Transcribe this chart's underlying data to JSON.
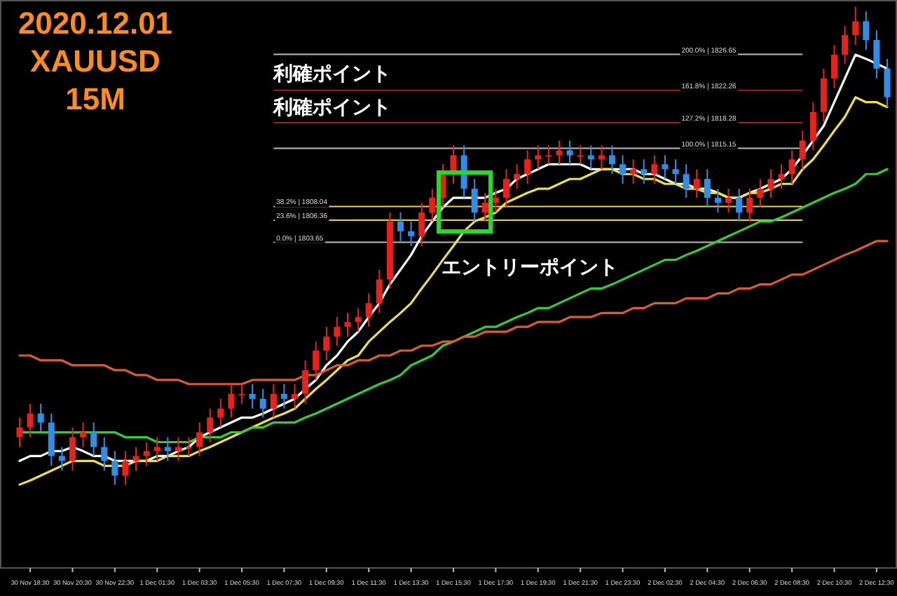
{
  "chart_data": {
    "type": "candlestick",
    "title": "2020.12.01",
    "subtitle": "XAUUSD",
    "categories": [
      null,
      "30 Nov 18:30",
      null,
      null,
      null,
      "30 Nov 20:30",
      null,
      null,
      null,
      "30 Nov 22:30",
      null,
      null,
      null,
      "1 Dec 01:30",
      null,
      null,
      null,
      "1 Dec 03:30",
      null,
      null,
      null,
      "1 Dec 05:30",
      null,
      null,
      null,
      "1 Dec 07:30",
      null,
      null,
      null,
      "1 Dec 09:30",
      null,
      null,
      null,
      "1 Dec 11:30",
      null,
      null,
      null,
      "1 Dec 13:30",
      null,
      null,
      null,
      "1 Dec 15:30",
      null,
      null,
      null,
      "1 Dec 17:30",
      null,
      null,
      null,
      "1 Dec 19:30",
      null,
      null,
      null,
      "1 Dec 21:30",
      null,
      null,
      null,
      "1 Dec 23:30",
      null,
      null,
      null,
      "2 Dec 02:30",
      null,
      null,
      null,
      "2 Dec 04:30",
      null,
      null,
      null,
      "2 Dec 06:30",
      null,
      null,
      null,
      "2 Dec 08:30",
      null,
      null,
      null,
      "2 Dec 10:30",
      null,
      null,
      null,
      "2 Dec 12:30",
      null
    ],
    "ylim": [
      1763.8,
      1833.3
    ],
    "tick_labels": "x",
    "ohlc": [
      [
        1779.8,
        1782.2,
        1778.6,
        1781.0
      ],
      [
        1781.0,
        1783.9,
        1779.8,
        1782.7
      ],
      [
        1782.7,
        1783.9,
        1780.4,
        1781.6
      ],
      [
        1781.6,
        1782.7,
        1776.3,
        1777.5
      ],
      [
        1777.5,
        1778.6,
        1775.7,
        1776.9
      ],
      [
        1776.9,
        1781.0,
        1775.7,
        1779.8
      ],
      [
        1779.8,
        1781.6,
        1778.6,
        1780.4
      ],
      [
        1780.4,
        1781.6,
        1777.5,
        1778.6
      ],
      [
        1778.6,
        1779.8,
        1775.7,
        1776.9
      ],
      [
        1776.9,
        1778.1,
        1774.0,
        1775.1
      ],
      [
        1775.1,
        1778.1,
        1774.0,
        1776.9
      ],
      [
        1776.9,
        1778.6,
        1775.7,
        1777.5
      ],
      [
        1777.5,
        1779.2,
        1776.3,
        1778.1
      ],
      [
        1778.1,
        1779.8,
        1776.9,
        1778.6
      ],
      [
        1778.6,
        1779.8,
        1776.9,
        1778.1
      ],
      [
        1778.1,
        1779.8,
        1776.9,
        1778.6
      ],
      [
        1778.6,
        1779.8,
        1777.5,
        1778.6
      ],
      [
        1778.6,
        1781.6,
        1777.5,
        1780.4
      ],
      [
        1780.4,
        1783.3,
        1779.2,
        1782.2
      ],
      [
        1782.2,
        1784.5,
        1781.0,
        1783.3
      ],
      [
        1783.3,
        1786.3,
        1782.2,
        1785.1
      ],
      [
        1785.1,
        1786.3,
        1783.9,
        1785.1
      ],
      [
        1785.1,
        1786.3,
        1783.3,
        1784.5
      ],
      [
        1784.5,
        1785.7,
        1782.2,
        1783.3
      ],
      [
        1783.3,
        1786.3,
        1782.2,
        1785.1
      ],
      [
        1785.1,
        1786.3,
        1783.3,
        1784.5
      ],
      [
        1784.5,
        1786.3,
        1783.3,
        1785.1
      ],
      [
        1785.1,
        1789.2,
        1783.9,
        1788.0
      ],
      [
        1788.0,
        1791.5,
        1786.8,
        1790.4
      ],
      [
        1790.4,
        1793.3,
        1789.2,
        1792.1
      ],
      [
        1792.1,
        1794.5,
        1791.0,
        1793.3
      ],
      [
        1793.3,
        1795.0,
        1792.1,
        1793.9
      ],
      [
        1793.9,
        1795.6,
        1792.7,
        1794.5
      ],
      [
        1794.5,
        1797.4,
        1793.3,
        1796.2
      ],
      [
        1796.2,
        1800.3,
        1795.0,
        1799.1
      ],
      [
        1799.1,
        1807.3,
        1798.0,
        1806.2
      ],
      [
        1806.2,
        1807.3,
        1803.8,
        1805.0
      ],
      [
        1805.0,
        1806.2,
        1803.2,
        1804.4
      ],
      [
        1804.4,
        1808.5,
        1803.2,
        1807.3
      ],
      [
        1807.3,
        1810.2,
        1806.2,
        1809.1
      ],
      [
        1809.1,
        1813.2,
        1807.9,
        1812.0
      ],
      [
        1812.0,
        1815.5,
        1810.8,
        1814.3
      ],
      [
        1814.3,
        1815.5,
        1809.1,
        1810.2
      ],
      [
        1810.2,
        1811.4,
        1806.2,
        1807.3
      ],
      [
        1807.3,
        1809.7,
        1806.2,
        1808.5
      ],
      [
        1808.5,
        1810.2,
        1807.3,
        1809.1
      ],
      [
        1809.1,
        1812.6,
        1807.9,
        1811.4
      ],
      [
        1811.4,
        1813.2,
        1810.2,
        1812.0
      ],
      [
        1812.0,
        1814.9,
        1810.8,
        1813.8
      ],
      [
        1813.8,
        1815.5,
        1812.6,
        1814.3
      ],
      [
        1814.3,
        1815.5,
        1813.2,
        1814.3
      ],
      [
        1814.3,
        1816.1,
        1813.2,
        1814.9
      ],
      [
        1814.9,
        1816.1,
        1813.2,
        1814.3
      ],
      [
        1814.3,
        1815.5,
        1813.2,
        1814.3
      ],
      [
        1814.3,
        1815.5,
        1812.6,
        1813.8
      ],
      [
        1813.8,
        1815.5,
        1812.6,
        1814.3
      ],
      [
        1814.3,
        1815.5,
        1812.0,
        1813.2
      ],
      [
        1813.2,
        1814.3,
        1810.8,
        1812.0
      ],
      [
        1812.0,
        1813.8,
        1810.8,
        1812.6
      ],
      [
        1812.6,
        1813.8,
        1810.8,
        1812.0
      ],
      [
        1812.0,
        1814.3,
        1810.8,
        1813.2
      ],
      [
        1813.2,
        1814.3,
        1811.4,
        1812.6
      ],
      [
        1812.6,
        1813.8,
        1810.8,
        1812.0
      ],
      [
        1812.0,
        1813.2,
        1809.1,
        1810.2
      ],
      [
        1810.2,
        1812.6,
        1809.1,
        1811.4
      ],
      [
        1811.4,
        1812.6,
        1807.9,
        1809.1
      ],
      [
        1809.1,
        1810.2,
        1807.3,
        1808.5
      ],
      [
        1808.5,
        1810.2,
        1807.3,
        1809.1
      ],
      [
        1809.1,
        1810.2,
        1806.2,
        1807.3
      ],
      [
        1807.3,
        1810.2,
        1806.2,
        1809.1
      ],
      [
        1809.1,
        1811.4,
        1807.9,
        1810.2
      ],
      [
        1810.2,
        1812.6,
        1809.1,
        1811.4
      ],
      [
        1811.4,
        1813.2,
        1810.2,
        1812.0
      ],
      [
        1812.0,
        1814.9,
        1810.8,
        1813.8
      ],
      [
        1813.8,
        1817.3,
        1812.6,
        1816.1
      ],
      [
        1816.1,
        1820.8,
        1814.9,
        1819.6
      ],
      [
        1819.6,
        1824.9,
        1818.4,
        1823.7
      ],
      [
        1823.7,
        1827.8,
        1822.5,
        1826.6
      ],
      [
        1826.6,
        1830.1,
        1825.5,
        1829.0
      ],
      [
        1829.0,
        1832.5,
        1827.8,
        1830.7
      ],
      [
        1830.7,
        1831.9,
        1827.2,
        1828.4
      ],
      [
        1828.4,
        1829.6,
        1823.7,
        1824.9
      ],
      [
        1824.9,
        1826.1,
        1820.2,
        1821.4
      ]
    ],
    "colors": [
      "#e8211d",
      "#e8211d",
      "#2f8fe8",
      "#2f8fe8",
      "#2f8fe8",
      "#e8211d",
      "#e8211d",
      "#2f8fe8",
      "#2f8fe8",
      "#2f8fe8",
      "#e8211d",
      "#e8211d",
      "#e8211d",
      "#e8211d",
      "#2f8fe8",
      "#e8211d",
      "#e8211d",
      "#e8211d",
      "#e8211d",
      "#e8211d",
      "#e8211d",
      "#e8211d",
      "#2f8fe8",
      "#2f8fe8",
      "#e8211d",
      "#2f8fe8",
      "#e8211d",
      "#e8211d",
      "#e8211d",
      "#e8211d",
      "#e8211d",
      "#e8211d",
      "#e8211d",
      "#e8211d",
      "#e8211d",
      "#e8211d",
      "#2f8fe8",
      "#2f8fe8",
      "#e8211d",
      "#e8211d",
      "#e8211d",
      "#e8211d",
      "#2f8fe8",
      "#2f8fe8",
      "#e8211d",
      "#e8211d",
      "#e8211d",
      "#e8211d",
      "#e8211d",
      "#e8211d",
      "#e8211d",
      "#e8211d",
      "#2f8fe8",
      "#e8211d",
      "#2f8fe8",
      "#e8211d",
      "#2f8fe8",
      "#2f8fe8",
      "#e8211d",
      "#2f8fe8",
      "#e8211d",
      "#2f8fe8",
      "#2f8fe8",
      "#2f8fe8",
      "#e8211d",
      "#2f8fe8",
      "#2f8fe8",
      "#e8211d",
      "#2f8fe8",
      "#e8211d",
      "#e8211d",
      "#e8211d",
      "#e8211d",
      "#e8211d",
      "#e8211d",
      "#e8211d",
      "#e8211d",
      "#e8211d",
      "#e8211d",
      "#e8211d",
      "#2f8fe8",
      "#2f8fe8",
      "#2f8fe8"
    ],
    "series": [
      {
        "type": "line",
        "color": "#ffffff",
        "values": [
          1776.9,
          1777.5,
          1777.5,
          1778.1,
          1778.1,
          1778.6,
          1778.1,
          1777.5,
          1777.5,
          1776.9,
          1776.9,
          1776.9,
          1776.9,
          1777.5,
          1777.5,
          1778.1,
          1778.6,
          1779.8,
          1780.4,
          1781.0,
          1781.6,
          1782.2,
          1782.2,
          1782.7,
          1783.3,
          1783.9,
          1784.5,
          1785.7,
          1786.8,
          1788.6,
          1789.8,
          1791.5,
          1792.7,
          1794.5,
          1796.2,
          1798.5,
          1800.3,
          1802.1,
          1804.4,
          1806.2,
          1807.9,
          1809.1,
          1809.1,
          1809.1,
          1809.1,
          1809.7,
          1810.2,
          1811.4,
          1812.0,
          1812.6,
          1813.2,
          1813.2,
          1813.2,
          1813.2,
          1812.6,
          1812.6,
          1812.6,
          1812.6,
          1812.6,
          1812.0,
          1812.0,
          1811.4,
          1810.8,
          1810.8,
          1810.2,
          1810.2,
          1809.7,
          1809.1,
          1809.1,
          1809.7,
          1810.2,
          1810.8,
          1811.4,
          1812.6,
          1814.3,
          1816.1,
          1817.9,
          1820.8,
          1823.7,
          1826.6,
          1826.1,
          1825.5,
          1824.9
        ]
      },
      {
        "type": "line",
        "color": "#f0e040",
        "values": [
          1774.0,
          1774.5,
          1775.1,
          1775.7,
          1776.3,
          1776.9,
          1776.9,
          1776.9,
          1776.3,
          1776.3,
          1776.3,
          1776.9,
          1776.9,
          1776.9,
          1777.5,
          1777.5,
          1777.5,
          1778.1,
          1778.6,
          1779.2,
          1779.8,
          1780.4,
          1781.0,
          1781.6,
          1782.2,
          1782.7,
          1783.3,
          1784.5,
          1785.7,
          1786.8,
          1788.0,
          1789.2,
          1789.8,
          1791.5,
          1792.7,
          1793.9,
          1795.0,
          1796.2,
          1798.0,
          1799.7,
          1801.5,
          1803.2,
          1805.0,
          1806.2,
          1806.7,
          1807.3,
          1808.5,
          1809.1,
          1809.7,
          1810.2,
          1810.2,
          1810.8,
          1811.4,
          1811.4,
          1812.0,
          1812.6,
          1812.6,
          1812.0,
          1812.0,
          1811.4,
          1811.4,
          1810.8,
          1810.8,
          1810.2,
          1810.2,
          1809.7,
          1809.7,
          1809.1,
          1809.1,
          1809.7,
          1809.7,
          1810.2,
          1810.8,
          1810.8,
          1812.6,
          1813.8,
          1815.5,
          1817.3,
          1819.0,
          1821.4,
          1820.8,
          1820.8,
          1820.2
        ]
      },
      {
        "type": "line",
        "color": "#30d030",
        "values": [
          1780.4,
          1780.4,
          1780.4,
          1780.4,
          1780.4,
          1780.4,
          1780.4,
          1780.4,
          1780.4,
          1780.4,
          1779.8,
          1779.8,
          1779.8,
          1779.2,
          1779.2,
          1779.2,
          1779.2,
          1779.8,
          1779.8,
          1779.8,
          1780.4,
          1780.4,
          1781.0,
          1781.0,
          1781.6,
          1781.6,
          1781.6,
          1782.2,
          1782.7,
          1783.3,
          1783.9,
          1784.5,
          1785.1,
          1785.7,
          1786.3,
          1786.8,
          1787.4,
          1788.6,
          1789.2,
          1789.8,
          1791.0,
          1791.5,
          1792.1,
          1792.7,
          1793.3,
          1793.3,
          1793.9,
          1794.5,
          1795.0,
          1795.6,
          1795.6,
          1796.2,
          1796.8,
          1797.4,
          1798.0,
          1798.0,
          1798.5,
          1799.1,
          1799.7,
          1800.3,
          1800.9,
          1801.5,
          1801.5,
          1802.1,
          1802.6,
          1803.2,
          1803.8,
          1804.4,
          1805.0,
          1805.6,
          1806.2,
          1806.2,
          1806.7,
          1807.3,
          1807.9,
          1808.5,
          1809.1,
          1809.7,
          1810.2,
          1810.8,
          1812.0,
          1812.0,
          1812.6
        ]
      },
      {
        "type": "line",
        "color": "#e05a30",
        "values": [
          1789.8,
          1789.8,
          1789.2,
          1789.2,
          1789.2,
          1788.6,
          1788.6,
          1788.6,
          1788.6,
          1788.0,
          1788.0,
          1787.4,
          1787.4,
          1786.8,
          1786.8,
          1786.8,
          1786.3,
          1786.3,
          1786.3,
          1786.3,
          1786.3,
          1786.3,
          1786.8,
          1786.8,
          1786.8,
          1786.8,
          1786.8,
          1787.4,
          1787.4,
          1788.0,
          1788.6,
          1788.6,
          1789.2,
          1789.2,
          1789.8,
          1789.8,
          1790.4,
          1790.4,
          1791.0,
          1791.0,
          1791.5,
          1791.5,
          1792.1,
          1792.1,
          1792.7,
          1792.7,
          1792.7,
          1793.3,
          1793.3,
          1793.9,
          1793.9,
          1793.9,
          1794.5,
          1794.5,
          1794.5,
          1795.0,
          1795.0,
          1795.0,
          1795.6,
          1795.6,
          1796.2,
          1796.2,
          1796.2,
          1796.8,
          1796.8,
          1796.8,
          1797.4,
          1797.4,
          1798.0,
          1798.0,
          1798.5,
          1798.5,
          1799.1,
          1799.7,
          1799.7,
          1800.3,
          1800.9,
          1801.5,
          1802.1,
          1802.6,
          1803.2,
          1803.8,
          1803.8
        ]
      }
    ],
    "ref_lines": [
      {
        "axis": "y",
        "value": 1803.65,
        "label": "0.0% | 1803.65",
        "color": "#bbbbbb"
      },
      {
        "axis": "y",
        "value": 1806.36,
        "label": "23.6% | 1806.36",
        "color": "#f0d040"
      },
      {
        "axis": "y",
        "value": 1808.04,
        "label": "38.2% | 1808.04",
        "color": "#f0d040"
      },
      {
        "axis": "y",
        "value": 1815.15,
        "label": "100.0% | 1815.15",
        "color": "#bbbbbb"
      },
      {
        "axis": "y",
        "value": 1818.28,
        "label": "127.2% | 1818.28",
        "color": "#b01818"
      },
      {
        "axis": "y",
        "value": 1822.26,
        "label": "161.8% | 1822.26",
        "color": "#b01818"
      },
      {
        "axis": "y",
        "value": 1826.65,
        "label": "200.0% | 1826.65",
        "color": "#bbbbbb"
      }
    ],
    "annotations": [
      "15M",
      "利確ポイント",
      "利確ポイント",
      "エントリーポイント"
    ]
  }
}
